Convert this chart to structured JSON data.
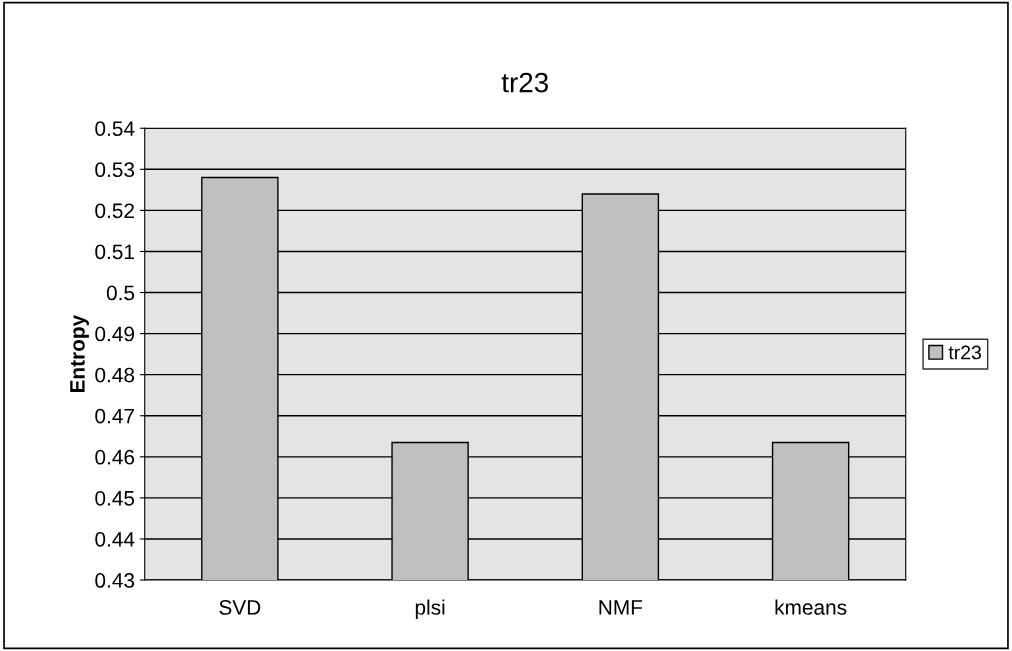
{
  "chart_data": {
    "type": "bar",
    "title": "tr23",
    "ylabel": "Entropy",
    "categories": [
      "SVD",
      "plsi",
      "NMF",
      "kmeans"
    ],
    "series": [
      {
        "name": "tr23",
        "color": "#c0c0c0",
        "values": [
          0.528,
          0.4635,
          0.524,
          0.4635
        ]
      }
    ],
    "ylim": [
      0.43,
      0.54
    ],
    "yticks": [
      0.43,
      0.44,
      0.45,
      0.46,
      0.47,
      0.48,
      0.49,
      0.5,
      0.51,
      0.52,
      0.53,
      0.54
    ],
    "grid": "y",
    "legend": "right"
  }
}
